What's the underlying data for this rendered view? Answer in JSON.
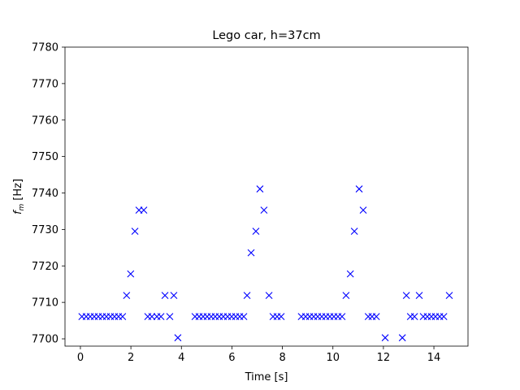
{
  "chart_data": {
    "type": "scatter",
    "title": "Lego car, h=37cm",
    "xlabel": "Time [s]",
    "ylabel": {
      "symbol": "f",
      "subscript": "m",
      "unit": "[Hz]"
    },
    "marker": "x",
    "color": "#0000ff",
    "xlim": [
      -0.61,
      15.35
    ],
    "xticks": [
      0,
      2,
      4,
      6,
      8,
      10,
      12,
      14
    ],
    "ylim": [
      7698,
      7780
    ],
    "yticks": [
      7700,
      7710,
      7720,
      7730,
      7740,
      7750,
      7760,
      7770,
      7780
    ],
    "x": [
      0.06,
      0.23,
      0.39,
      0.55,
      0.71,
      0.87,
      1.03,
      1.19,
      1.35,
      1.51,
      1.67,
      1.83,
      1.99,
      2.16,
      2.32,
      2.51,
      2.67,
      2.83,
      3.03,
      3.19,
      3.35,
      3.54,
      3.7,
      3.86,
      4.54,
      4.7,
      4.86,
      5.02,
      5.18,
      5.34,
      5.5,
      5.66,
      5.83,
      5.99,
      6.15,
      6.31,
      6.47,
      6.6,
      6.76,
      6.95,
      7.11,
      7.27,
      7.47,
      7.63,
      7.79,
      7.95,
      8.75,
      8.92,
      9.08,
      9.24,
      9.4,
      9.56,
      9.72,
      9.88,
      10.04,
      10.2,
      10.36,
      10.52,
      10.69,
      10.85,
      11.04,
      11.2,
      11.4,
      11.55,
      11.72,
      12.07,
      12.75,
      12.91,
      13.07,
      13.23,
      13.42,
      13.58,
      13.74,
      13.9,
      14.06,
      14.23,
      14.39,
      14.61
    ],
    "values": [
      7706.1,
      7706.1,
      7706.1,
      7706.1,
      7706.1,
      7706.1,
      7706.1,
      7706.1,
      7706.1,
      7706.1,
      7706.1,
      7711.9,
      7717.8,
      7729.5,
      7735.3,
      7735.3,
      7706.1,
      7706.1,
      7706.1,
      7706.1,
      7711.9,
      7706.1,
      7711.9,
      7700.3,
      7706.1,
      7706.1,
      7706.1,
      7706.1,
      7706.1,
      7706.1,
      7706.1,
      7706.1,
      7706.1,
      7706.1,
      7706.1,
      7706.1,
      7706.1,
      7711.9,
      7723.6,
      7729.5,
      7741.1,
      7735.3,
      7711.9,
      7706.1,
      7706.1,
      7706.1,
      7706.1,
      7706.1,
      7706.1,
      7706.1,
      7706.1,
      7706.1,
      7706.1,
      7706.1,
      7706.1,
      7706.1,
      7706.1,
      7711.9,
      7717.8,
      7729.5,
      7741.1,
      7735.3,
      7706.1,
      7706.1,
      7706.1,
      7700.3,
      7700.3,
      7711.9,
      7706.1,
      7706.1,
      7711.9,
      7706.1,
      7706.1,
      7706.1,
      7706.1,
      7706.1,
      7706.1,
      7711.9
    ]
  }
}
